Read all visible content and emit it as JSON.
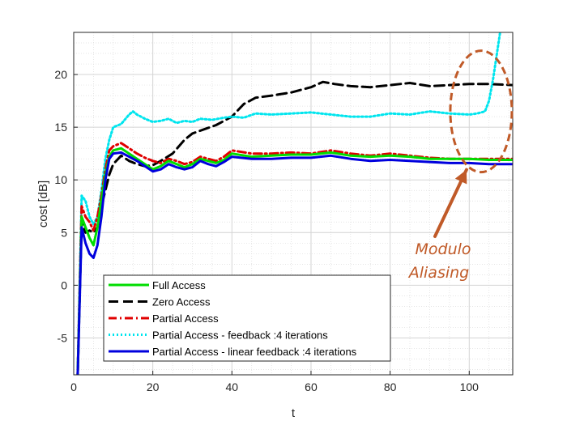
{
  "chart_data": {
    "type": "line",
    "title": "",
    "xlabel": "t",
    "ylabel": "cost [dB]",
    "xlim": [
      0,
      111
    ],
    "ylim": [
      -8.5,
      24
    ],
    "x_ticks": [
      0,
      20,
      40,
      60,
      80,
      100
    ],
    "y_ticks": [
      -5,
      0,
      5,
      10,
      15,
      20
    ],
    "grid": true,
    "minor_grid": true,
    "legend_position": "lower-left",
    "annotation": {
      "text_lines": [
        "Modulo",
        "Aliasing"
      ],
      "color": "#c05a28",
      "target_x": 103,
      "target_y": 16.5
    },
    "series": [
      {
        "name": "Full Access",
        "color": "#00dd00",
        "dash": "solid",
        "x": [
          1,
          2,
          3,
          4,
          5,
          6,
          7,
          8,
          9,
          10,
          12,
          14,
          16,
          18,
          20,
          22,
          24,
          26,
          28,
          30,
          32,
          34,
          36,
          38,
          40,
          45,
          50,
          55,
          60,
          65,
          70,
          75,
          80,
          85,
          90,
          95,
          100,
          105,
          111
        ],
        "y": [
          -8.5,
          6.5,
          5.5,
          4.5,
          3.8,
          5.5,
          8.0,
          10.5,
          12.2,
          12.8,
          13.0,
          12.5,
          12.0,
          11.5,
          11.0,
          11.3,
          11.8,
          11.5,
          11.2,
          11.5,
          12.0,
          11.8,
          11.6,
          11.9,
          12.5,
          12.2,
          12.3,
          12.4,
          12.4,
          12.6,
          12.3,
          12.2,
          12.3,
          12.2,
          12.0,
          12.0,
          12.0,
          11.9,
          11.9
        ]
      },
      {
        "name": "Zero Access",
        "color": "#000000",
        "dash": "dashed",
        "x": [
          1,
          2,
          3,
          4,
          5,
          6,
          7,
          8,
          9,
          10,
          12,
          14,
          16,
          18,
          20,
          22,
          25,
          28,
          30,
          33,
          36,
          40,
          43,
          46,
          50,
          55,
          60,
          63,
          66,
          70,
          75,
          80,
          85,
          90,
          95,
          100,
          105,
          111
        ],
        "y": [
          -8.5,
          6.0,
          5.0,
          5.2,
          5.0,
          5.5,
          7.5,
          9.0,
          10.5,
          11.5,
          12.3,
          11.8,
          11.5,
          11.3,
          11.4,
          11.8,
          12.5,
          13.8,
          14.4,
          14.8,
          15.2,
          16.0,
          17.2,
          17.8,
          18.0,
          18.3,
          18.8,
          19.3,
          19.1,
          18.9,
          18.8,
          19.0,
          19.2,
          18.9,
          19.0,
          19.1,
          19.1,
          19.0
        ]
      },
      {
        "name": "Partial Access",
        "color": "#e00000",
        "dash": "dashdot",
        "x": [
          1,
          2,
          3,
          4,
          5,
          6,
          7,
          8,
          9,
          10,
          12,
          14,
          16,
          18,
          20,
          22,
          24,
          26,
          28,
          30,
          32,
          34,
          36,
          38,
          40,
          45,
          50,
          55,
          60,
          65,
          70,
          75,
          80,
          85,
          90,
          95,
          100,
          105,
          111
        ],
        "y": [
          -8.5,
          7.5,
          6.5,
          6.0,
          5.2,
          6.5,
          8.5,
          11.0,
          12.8,
          13.2,
          13.5,
          13.0,
          12.5,
          12.1,
          11.8,
          11.6,
          12.0,
          11.8,
          11.5,
          11.7,
          12.2,
          12.0,
          11.8,
          12.2,
          12.8,
          12.5,
          12.5,
          12.6,
          12.5,
          12.8,
          12.5,
          12.3,
          12.5,
          12.3,
          12.1,
          12.0,
          12.0,
          12.0,
          12.0
        ]
      },
      {
        "name": "Partial Access - feedback :4 iterations",
        "color": "#00e5ee",
        "dash": "dotted",
        "x": [
          1,
          2,
          3,
          4,
          5,
          6,
          7,
          8,
          9,
          10,
          12,
          14,
          15,
          16,
          18,
          20,
          22,
          24,
          26,
          28,
          30,
          32,
          35,
          38,
          40,
          43,
          46,
          50,
          55,
          60,
          65,
          70,
          75,
          80,
          85,
          90,
          95,
          100,
          102,
          104,
          105,
          106,
          107,
          108
        ],
        "y": [
          -8.5,
          8.5,
          8.0,
          6.5,
          5.8,
          6.5,
          9.0,
          12.0,
          13.8,
          15.0,
          15.3,
          16.2,
          16.5,
          16.2,
          15.8,
          15.5,
          15.6,
          15.8,
          15.4,
          15.6,
          15.5,
          15.8,
          15.7,
          15.9,
          16.0,
          15.9,
          16.3,
          16.2,
          16.3,
          16.4,
          16.2,
          16.0,
          16.0,
          16.3,
          16.2,
          16.5,
          16.3,
          16.2,
          16.3,
          16.5,
          17.5,
          19.5,
          22.0,
          24.5
        ]
      },
      {
        "name": "Partial Access - linear feedback :4 iterations",
        "color": "#0000dd",
        "dash": "solid",
        "x": [
          1,
          2,
          3,
          4,
          5,
          6,
          7,
          8,
          9,
          10,
          12,
          14,
          16,
          18,
          20,
          22,
          24,
          26,
          28,
          30,
          32,
          34,
          36,
          38,
          40,
          45,
          50,
          55,
          60,
          65,
          70,
          75,
          80,
          85,
          90,
          95,
          100,
          105,
          111
        ],
        "y": [
          -8.5,
          5.5,
          4.0,
          3.0,
          2.6,
          3.8,
          6.5,
          10.0,
          12.0,
          12.5,
          12.6,
          12.2,
          11.8,
          11.3,
          10.8,
          11.0,
          11.5,
          11.2,
          11.0,
          11.2,
          11.8,
          11.5,
          11.3,
          11.7,
          12.2,
          12.0,
          12.0,
          12.1,
          12.1,
          12.3,
          12.0,
          11.8,
          11.9,
          11.8,
          11.7,
          11.6,
          11.6,
          11.5,
          11.5
        ]
      }
    ]
  }
}
